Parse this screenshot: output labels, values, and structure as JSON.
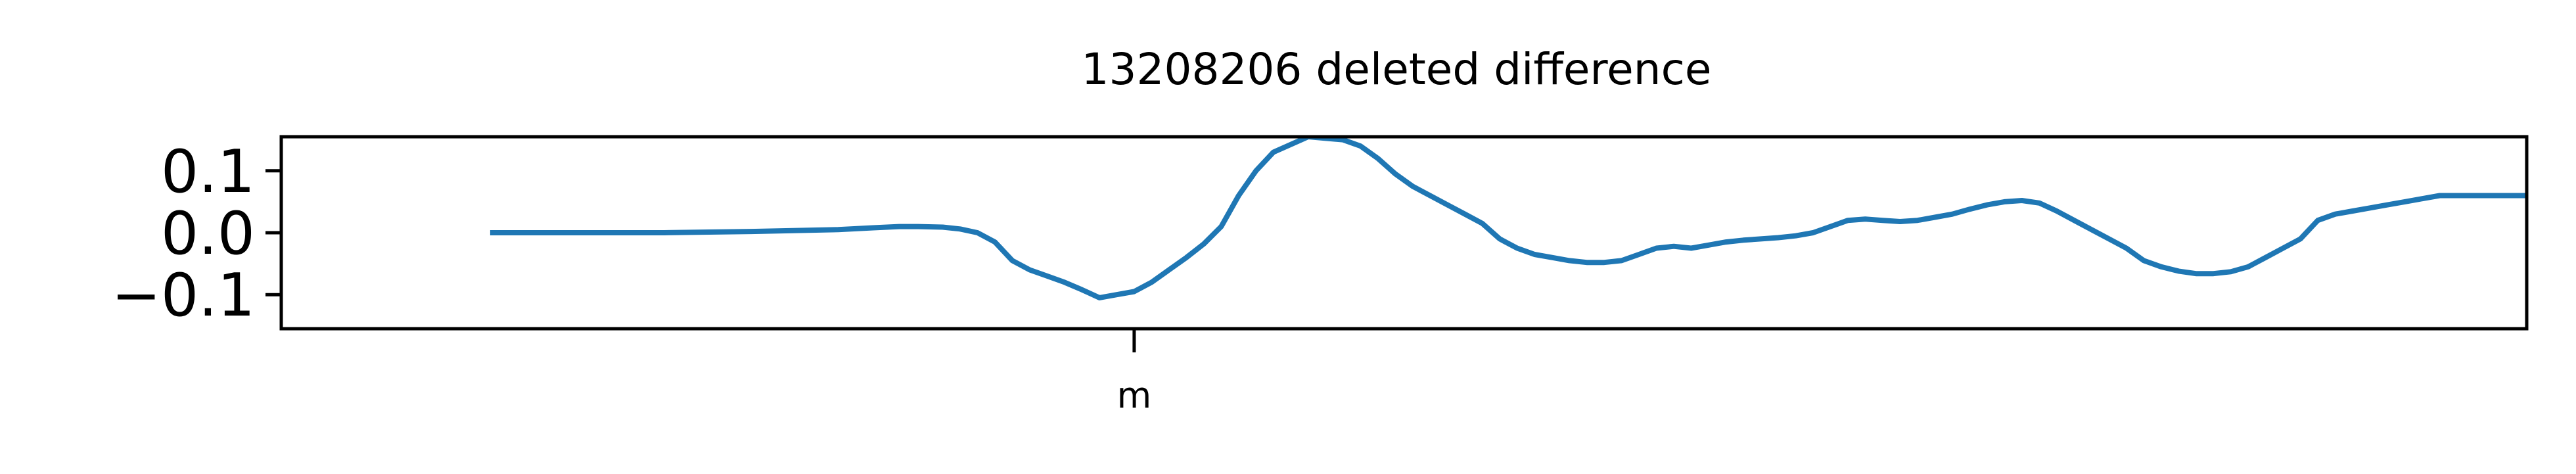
{
  "chart_data": {
    "type": "line",
    "title": "13208206 deleted difference",
    "xlabel": "",
    "ylabel": "",
    "xlim": [
      -74,
      184
    ],
    "ylim": [
      -0.155,
      0.155
    ],
    "grid": false,
    "legend": "none",
    "xticks": [
      {
        "value": 24,
        "label": "m"
      }
    ],
    "yticks": [
      {
        "value": 0.1,
        "label": "0.1"
      },
      {
        "value": 0.0,
        "label": "0.0"
      },
      {
        "value": -0.1,
        "label": "−0.1"
      }
    ],
    "series": [
      {
        "color": "#1f77b4",
        "x": [
          -50,
          -40,
          -30,
          -20,
          -10,
          -6,
          -3,
          -1,
          2,
          4,
          6,
          8,
          10,
          12,
          14,
          16,
          18,
          20,
          22,
          24,
          26,
          28,
          30,
          32,
          34,
          36,
          38,
          40,
          44,
          48,
          50,
          52,
          54,
          56,
          58,
          60,
          62,
          64,
          66,
          68,
          70,
          72,
          74,
          76,
          78,
          80,
          82,
          84,
          86,
          88,
          90,
          92,
          94,
          96,
          98,
          100,
          102,
          104,
          106,
          108,
          110,
          112,
          114,
          116,
          118,
          120,
          122,
          124,
          126,
          128,
          130,
          132,
          134,
          136,
          138,
          140,
          142,
          144,
          146,
          148,
          150,
          152,
          154,
          156,
          158,
          160,
          162,
          164,
          166,
          168,
          170,
          172,
          174,
          176,
          178,
          180,
          182,
          184
        ],
        "values": [
          0.0,
          0.0,
          0.0,
          0.002,
          0.005,
          0.008,
          0.01,
          0.01,
          0.009,
          0.006,
          0.0,
          -0.015,
          -0.045,
          -0.06,
          -0.07,
          -0.08,
          -0.092,
          -0.105,
          -0.1,
          -0.095,
          -0.08,
          -0.06,
          -0.04,
          -0.018,
          0.01,
          0.06,
          0.1,
          0.13,
          0.155,
          0.15,
          0.14,
          0.12,
          0.095,
          0.075,
          0.06,
          0.045,
          0.03,
          0.015,
          -0.01,
          -0.025,
          -0.035,
          -0.04,
          -0.045,
          -0.048,
          -0.048,
          -0.045,
          -0.035,
          -0.025,
          -0.022,
          -0.025,
          -0.02,
          -0.015,
          -0.012,
          -0.01,
          -0.008,
          -0.005,
          0.0,
          0.01,
          0.02,
          0.022,
          0.02,
          0.018,
          0.02,
          0.025,
          0.03,
          0.038,
          0.045,
          0.05,
          0.052,
          0.048,
          0.035,
          0.02,
          0.005,
          -0.01,
          -0.025,
          -0.045,
          -0.055,
          -0.062,
          -0.066,
          -0.066,
          -0.063,
          -0.055,
          -0.04,
          -0.025,
          -0.01,
          0.02,
          0.03,
          0.035,
          0.04,
          0.045,
          0.05,
          0.055,
          0.06,
          0.06,
          0.06,
          0.06,
          0.06,
          0.06
        ]
      }
    ]
  }
}
